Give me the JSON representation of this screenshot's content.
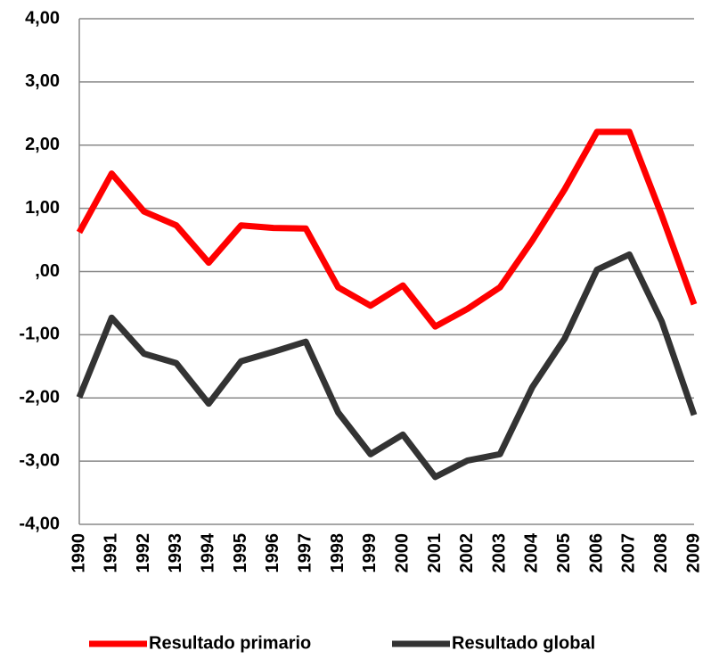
{
  "chart_data": {
    "type": "line",
    "categories": [
      "1990",
      "1991",
      "1992",
      "1993",
      "1994",
      "1995",
      "1996",
      "1997",
      "1998",
      "1999",
      "2000",
      "2001",
      "2002",
      "2003",
      "2004",
      "2005",
      "2006",
      "2007",
      "2008",
      "2009"
    ],
    "series": [
      {
        "name": "Resultado primario",
        "color": "#ff0000",
        "values": [
          0.62,
          1.55,
          0.95,
          0.73,
          0.14,
          0.73,
          0.69,
          0.68,
          -0.25,
          -0.54,
          -0.22,
          -0.87,
          -0.59,
          -0.25,
          0.49,
          1.3,
          2.21,
          2.21,
          0.89,
          -0.52
        ]
      },
      {
        "name": "Resultado global",
        "color": "#333333",
        "values": [
          -1.99,
          -0.73,
          -1.3,
          -1.45,
          -2.09,
          -1.42,
          -1.27,
          -1.11,
          -2.23,
          -2.89,
          -2.58,
          -3.25,
          -2.99,
          -2.89,
          -1.83,
          -1.06,
          0.03,
          0.27,
          -0.79,
          -2.27
        ]
      }
    ],
    "ylim": [
      -4,
      4
    ],
    "yticks": [
      {
        "value": -4,
        "label": "-4,00"
      },
      {
        "value": -3,
        "label": "-3,00"
      },
      {
        "value": -2,
        "label": "-2,00"
      },
      {
        "value": -1,
        "label": "-1,00"
      },
      {
        "value": 0,
        "label": ",00"
      },
      {
        "value": 1,
        "label": "1,00"
      },
      {
        "value": 2,
        "label": "2,00"
      },
      {
        "value": 3,
        "label": "3,00"
      },
      {
        "value": 4,
        "label": "4,00"
      }
    ],
    "grid": true,
    "legend": "bottom"
  }
}
